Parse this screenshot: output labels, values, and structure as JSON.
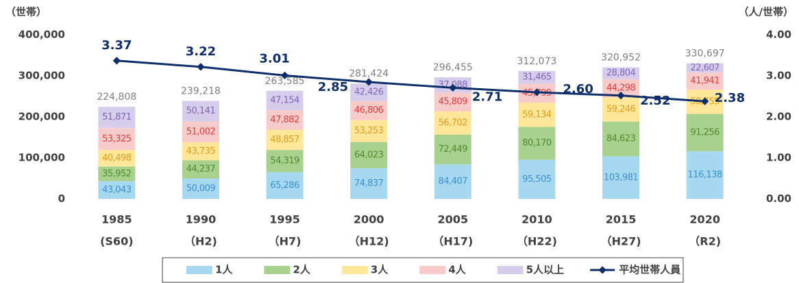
{
  "chart_data": {
    "type": "bar",
    "y_axis_label": "（世帯）",
    "y2_axis_label": "（人/世帯）",
    "categories": [
      "1985",
      "1990",
      "1995",
      "2000",
      "2005",
      "2010",
      "2015",
      "2020"
    ],
    "sub_categories": [
      "(S60)",
      "（H2)",
      "（H7)",
      "（H12)",
      "（H17)",
      "（H22)",
      "（H27)",
      "（R2)"
    ],
    "series": [
      {
        "name": "1人",
        "color": "#a6d8f0",
        "label_color": "#3a8fd0",
        "values": [
          43043,
          50009,
          65286,
          74837,
          84407,
          95505,
          103981,
          116138
        ],
        "value_labels": [
          "43,043",
          "50,009",
          "65,286",
          "74,837",
          "84,407",
          "95,505",
          "103,981",
          "116,138"
        ]
      },
      {
        "name": "2人",
        "color": "#a9d18e",
        "label_color": "#4e8a2e",
        "values": [
          35952,
          44237,
          54319,
          64023,
          72449,
          80170,
          84623,
          91256
        ],
        "value_labels": [
          "35,952",
          "44,237",
          "54,319",
          "64,023",
          "72,449",
          "80,170",
          "84,623",
          "91,256"
        ]
      },
      {
        "name": "3人",
        "color": "#ffe699",
        "label_color": "#e69a1a",
        "values": [
          40498,
          43735,
          48857,
          53253,
          56702,
          59134,
          59246,
          58755
        ],
        "value_labels": [
          "40,498",
          "43,735",
          "48,857",
          "53,253",
          "56,702",
          "59,134",
          "59,246",
          "58,755"
        ]
      },
      {
        "name": "4人",
        "color": "#f8cbcb",
        "label_color": "#e83c3c",
        "values": [
          53325,
          51002,
          47882,
          46806,
          45809,
          45799,
          44298,
          41941
        ],
        "value_labels": [
          "53,325",
          "51,002",
          "47,882",
          "46,806",
          "45,809",
          "45,799",
          "44,298",
          "41,941"
        ]
      },
      {
        "name": "5人以上",
        "color": "#d6cdec",
        "label_color": "#8064b8",
        "values": [
          51871,
          50141,
          47154,
          42426,
          37088,
          31465,
          28804,
          22607
        ],
        "value_labels": [
          "51,871",
          "50,141",
          "47,154",
          "42,426",
          "37,088",
          "31,465",
          "28,804",
          "22,607"
        ]
      },
      {
        "name": "平均世帯人員",
        "type": "line",
        "axis": "y2",
        "color": "#0d2d6b",
        "values": [
          3.37,
          3.22,
          3.01,
          2.85,
          2.71,
          2.6,
          2.52,
          2.38
        ],
        "value_labels": [
          "3.37",
          "3.22",
          "3.01",
          "2.85",
          "2.71",
          "2.60",
          "2.52",
          "2.38"
        ]
      }
    ],
    "totals": [
      224808,
      239218,
      263585,
      281424,
      296455,
      312073,
      320952,
      330697
    ],
    "total_labels": [
      "224,808",
      "239,218",
      "263,585",
      "281,424",
      "296,455",
      "312,073",
      "320,952",
      "330,697"
    ],
    "ylim": [
      0,
      400000
    ],
    "yticks": [
      0,
      {
        "value": 100000,
        "label": "100,000"
      },
      {
        "value": 200000,
        "label": "200,000"
      },
      {
        "value": 300000,
        "label": "300,000"
      },
      {
        "value": 400000,
        "label": "400,000"
      }
    ],
    "y2lim": [
      0,
      4
    ],
    "y2ticks": [
      {
        "value": 0,
        "label": "0.00"
      },
      {
        "value": 1,
        "label": "1.00"
      },
      {
        "value": 2,
        "label": "2.00"
      },
      {
        "value": 3,
        "label": "3.00"
      },
      {
        "value": 4,
        "label": "4.00"
      }
    ],
    "legend": "bottom"
  }
}
